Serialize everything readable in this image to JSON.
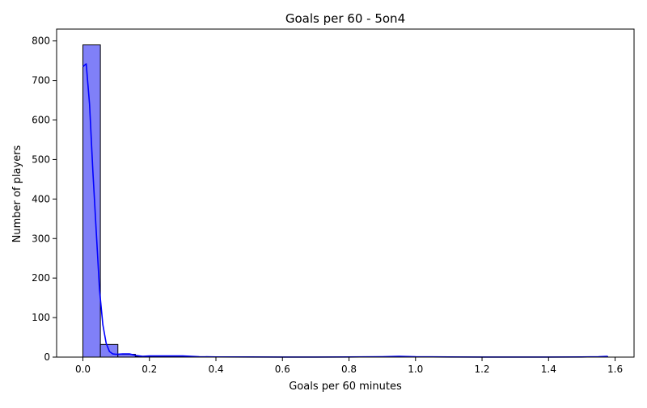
{
  "chart_data": {
    "type": "bar",
    "title": "Goals per 60 - 5on4",
    "xlabel": "Goals per 60 minutes",
    "ylabel": "Number of players",
    "xlim": [
      -0.079,
      1.657
    ],
    "ylim": [
      0,
      830
    ],
    "bin_width": 0.0526,
    "bins": [
      {
        "x0": 0.0,
        "x1": 0.0526,
        "count": 790
      },
      {
        "x0": 0.0526,
        "x1": 0.1052,
        "count": 32
      },
      {
        "x0": 0.1052,
        "x1": 0.1578,
        "count": 7
      },
      {
        "x0": 0.1578,
        "x1": 0.2104,
        "count": 2
      },
      {
        "x0": 0.2104,
        "x1": 0.263,
        "count": 2
      },
      {
        "x0": 0.263,
        "x1": 0.3156,
        "count": 2
      },
      {
        "x0": 0.3156,
        "x1": 0.3682,
        "count": 1
      },
      {
        "x0": 0.3682,
        "x1": 0.4208,
        "count": 0
      },
      {
        "x0": 0.4208,
        "x1": 0.4734,
        "count": 0
      },
      {
        "x0": 0.4734,
        "x1": 0.526,
        "count": 0
      },
      {
        "x0": 0.526,
        "x1": 0.5786,
        "count": 0
      },
      {
        "x0": 0.5786,
        "x1": 0.6312,
        "count": 0
      },
      {
        "x0": 0.6312,
        "x1": 0.6838,
        "count": 0
      },
      {
        "x0": 0.6838,
        "x1": 0.7364,
        "count": 0
      },
      {
        "x0": 0.7364,
        "x1": 0.789,
        "count": 0
      },
      {
        "x0": 0.789,
        "x1": 0.8416,
        "count": 0
      },
      {
        "x0": 0.8416,
        "x1": 0.8942,
        "count": 0
      },
      {
        "x0": 0.8942,
        "x1": 0.9468,
        "count": 1
      },
      {
        "x0": 0.9468,
        "x1": 0.9994,
        "count": 0
      },
      {
        "x0": 0.9994,
        "x1": 1.052,
        "count": 0
      },
      {
        "x0": 1.052,
        "x1": 1.1046,
        "count": 0
      },
      {
        "x0": 1.1046,
        "x1": 1.1572,
        "count": 0
      },
      {
        "x0": 1.1572,
        "x1": 1.2098,
        "count": 0
      },
      {
        "x0": 1.2098,
        "x1": 1.2624,
        "count": 0
      },
      {
        "x0": 1.2624,
        "x1": 1.315,
        "count": 0
      },
      {
        "x0": 1.315,
        "x1": 1.3676,
        "count": 0
      },
      {
        "x0": 1.3676,
        "x1": 1.4202,
        "count": 0
      },
      {
        "x0": 1.4202,
        "x1": 1.4728,
        "count": 0
      },
      {
        "x0": 1.4728,
        "x1": 1.5254,
        "count": 0
      },
      {
        "x0": 1.5254,
        "x1": 1.578,
        "count": 1
      }
    ],
    "kde": {
      "x": [
        0,
        0.01,
        0.02,
        0.03,
        0.04,
        0.05,
        0.06,
        0.07,
        0.08,
        0.09,
        0.1,
        0.12,
        0.14,
        0.16,
        0.18,
        0.2,
        0.25,
        0.3,
        0.35,
        0.4,
        0.5,
        0.6,
        0.7,
        0.8,
        0.9,
        0.95,
        1.0,
        1.1,
        1.2,
        1.3,
        1.4,
        1.5,
        1.55,
        1.578
      ],
      "y": [
        735,
        742,
        640,
        470,
        320,
        170,
        82,
        35,
        14,
        8,
        7,
        8,
        8,
        4,
        2,
        3,
        3,
        3,
        1,
        0.5,
        0.3,
        0.2,
        0.2,
        0.3,
        1,
        2,
        0.8,
        0.3,
        0.2,
        0.2,
        0.2,
        0.3,
        1,
        2
      ]
    },
    "xticks": [
      "0.0",
      "0.2",
      "0.4",
      "0.6",
      "0.8",
      "1.0",
      "1.2",
      "1.4",
      "1.6"
    ],
    "yticks": [
      "0",
      "100",
      "200",
      "300",
      "400",
      "500",
      "600",
      "700",
      "800"
    ],
    "grid": false,
    "legend": "none",
    "colors": {
      "bar_fill": "#8080f8",
      "bar_edge": "#000000",
      "kde_line": "#0000ff"
    }
  }
}
